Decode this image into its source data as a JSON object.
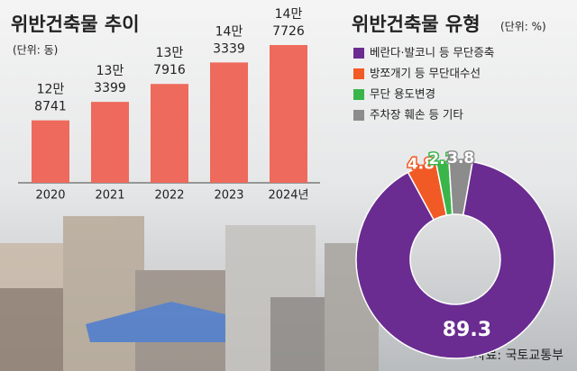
{
  "chart_data": [
    {
      "type": "bar",
      "title": "위반건축물 추이",
      "subtitle": "(단위: 동)",
      "categories": [
        "2020",
        "2021",
        "2022",
        "2023",
        "2024년"
      ],
      "values": [
        128741,
        133399,
        137916,
        143339,
        147726
      ],
      "value_labels": [
        [
          "12만",
          "8741"
        ],
        [
          "13만",
          "3399"
        ],
        [
          "13만",
          "7916"
        ],
        [
          "14만",
          "3339"
        ],
        [
          "14만",
          "7726"
        ]
      ],
      "color": "#ee6a5c",
      "ylim": [
        113000,
        150000
      ]
    },
    {
      "type": "pie",
      "title": "위반건축물 유형",
      "subtitle": "(단위: %)",
      "categories": [
        "베란다·발코니 등 무단증축",
        "방쪼개기 등 무단대수선",
        "무단 용도변경",
        "주차장 훼손 등 기타"
      ],
      "values": [
        89.3,
        4.8,
        2.1,
        3.8
      ],
      "colors": [
        "#6a2c91",
        "#f15a24",
        "#39b54a",
        "#8c8c8c"
      ],
      "source": "자료: 국토교통부"
    }
  ]
}
